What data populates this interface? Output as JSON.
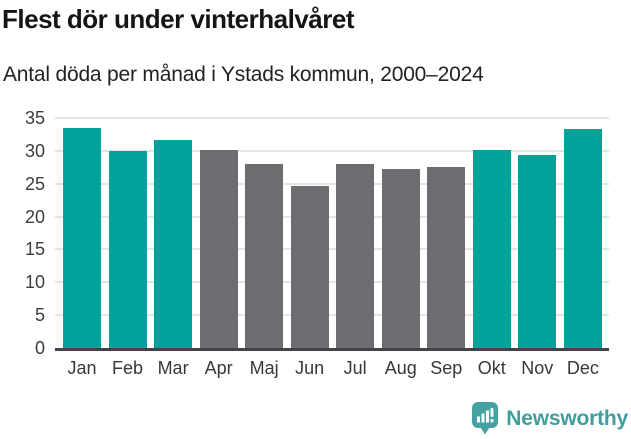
{
  "header": {
    "title": "Flest dör under vinterhalvåret",
    "subtitle": "Antal döda per månad i Ystads kommun, 2000–2024"
  },
  "footer": {
    "brand": "Newsworthy",
    "logo_icon": "newsworthy-speech-bubble-chart-icon"
  },
  "colors": {
    "winter_bar": "#00a29a",
    "summer_bar": "#6d6c71",
    "gridline": "#e4e4e4",
    "axis_line": "#434347",
    "tick_label": "#3d3d3d",
    "title_text": "#151515",
    "brand_teal": "#3f9e9d",
    "logo_teal": "#46a2a1",
    "background": "#ffffff"
  },
  "chart_data": {
    "type": "bar",
    "title": "Flest dör under vinterhalvåret",
    "subtitle": "Antal döda per månad i Ystads kommun, 2000–2024",
    "categories": [
      "Jan",
      "Feb",
      "Mar",
      "Apr",
      "Maj",
      "Jun",
      "Jul",
      "Aug",
      "Sep",
      "Okt",
      "Nov",
      "Dec"
    ],
    "values": [
      33.5,
      30.0,
      31.7,
      30.1,
      28.0,
      24.6,
      28.0,
      27.2,
      27.5,
      30.2,
      29.3,
      33.3
    ],
    "bar_color_keys": [
      "winter",
      "winter",
      "winter",
      "summer",
      "summer",
      "summer",
      "summer",
      "summer",
      "summer",
      "winter",
      "winter",
      "winter"
    ],
    "xlabel": "",
    "ylabel": "",
    "ylim": [
      0,
      35
    ],
    "yticks": [
      0,
      5,
      10,
      15,
      20,
      25,
      30,
      35
    ],
    "grid": true,
    "legend": "none"
  }
}
